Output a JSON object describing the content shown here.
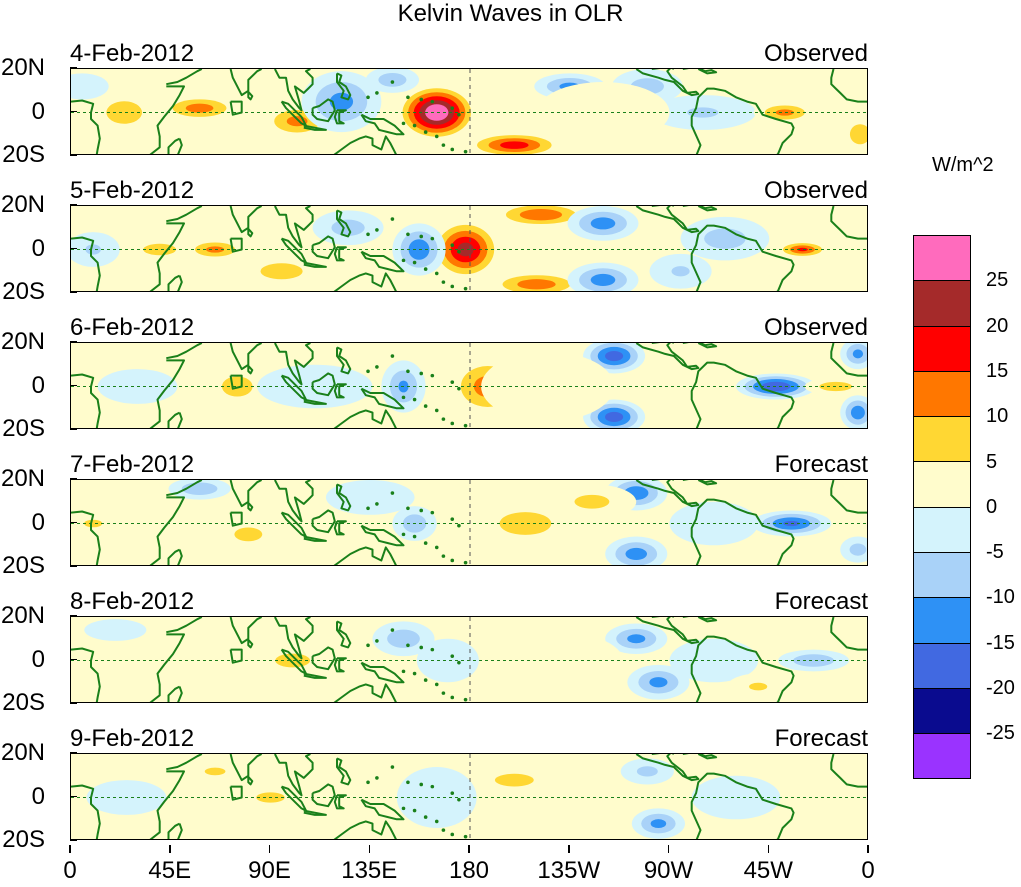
{
  "title": "Kelvin Waves in OLR",
  "panels": [
    {
      "date": "4-Feb-2012",
      "status": "Observed",
      "blobs": [
        {
          "lon": 165,
          "lat": 0,
          "w": 18,
          "h": 13,
          "val": 30
        },
        {
          "lon": 200,
          "lat": -15,
          "w": 22,
          "h": 6,
          "val": 18
        },
        {
          "lon": 24,
          "lat": 0,
          "w": 14,
          "h": 9,
          "val": 10
        },
        {
          "lon": 58,
          "lat": 2,
          "w": 18,
          "h": 6,
          "val": 13
        },
        {
          "lon": 102,
          "lat": -4,
          "w": 16,
          "h": 8,
          "val": 12
        },
        {
          "lon": 122,
          "lat": 5,
          "w": 18,
          "h": 14,
          "val": -12
        },
        {
          "lon": 145,
          "lat": 15,
          "w": 12,
          "h": 6,
          "val": -9
        },
        {
          "lon": 225,
          "lat": 12,
          "w": 16,
          "h": 6,
          "val": -12
        },
        {
          "lon": 260,
          "lat": 12,
          "w": 16,
          "h": 8,
          "val": -8
        },
        {
          "lon": 285,
          "lat": 0,
          "w": 24,
          "h": 8,
          "val": -6
        },
        {
          "lon": 322,
          "lat": 0,
          "w": 14,
          "h": 5,
          "val": 12
        },
        {
          "lon": 356,
          "lat": -10,
          "w": 8,
          "h": 8,
          "val": 10
        },
        {
          "lon": 240,
          "lat": 0,
          "w": 30,
          "h": 14,
          "val": 3
        },
        {
          "lon": 5,
          "lat": 12,
          "w": 12,
          "h": 6,
          "val": -5
        },
        {
          "lon": 75,
          "lat": -15,
          "w": 16,
          "h": 6,
          "val": 4
        }
      ]
    },
    {
      "date": "5-Feb-2012",
      "status": "Observed",
      "blobs": [
        {
          "lon": 178,
          "lat": 0,
          "w": 16,
          "h": 14,
          "val": 22
        },
        {
          "lon": 212,
          "lat": 16,
          "w": 22,
          "h": 6,
          "val": 15
        },
        {
          "lon": 210,
          "lat": -16,
          "w": 22,
          "h": 6,
          "val": 14
        },
        {
          "lon": 157,
          "lat": 0,
          "w": 12,
          "h": 12,
          "val": -14
        },
        {
          "lon": 240,
          "lat": 12,
          "w": 16,
          "h": 8,
          "val": -13
        },
        {
          "lon": 240,
          "lat": -14,
          "w": 16,
          "h": 8,
          "val": -13
        },
        {
          "lon": 125,
          "lat": 10,
          "w": 16,
          "h": 8,
          "val": -8
        },
        {
          "lon": 95,
          "lat": -10,
          "w": 18,
          "h": 7,
          "val": 9
        },
        {
          "lon": 65,
          "lat": 0,
          "w": 14,
          "h": 5,
          "val": 12
        },
        {
          "lon": 40,
          "lat": 0,
          "w": 14,
          "h": 5,
          "val": 9
        },
        {
          "lon": 330,
          "lat": 0,
          "w": 12,
          "h": 4,
          "val": 16
        },
        {
          "lon": 295,
          "lat": 5,
          "w": 20,
          "h": 10,
          "val": -8
        },
        {
          "lon": 275,
          "lat": -10,
          "w": 14,
          "h": 8,
          "val": -6
        },
        {
          "lon": 10,
          "lat": 0,
          "w": 12,
          "h": 8,
          "val": -6
        }
      ]
    },
    {
      "date": "6-Feb-2012",
      "status": "Observed",
      "blobs": [
        {
          "lon": 188,
          "lat": 0,
          "w": 18,
          "h": 14,
          "val": 13
        },
        {
          "lon": 150,
          "lat": 0,
          "w": 10,
          "h": 12,
          "val": -11
        },
        {
          "lon": 245,
          "lat": 14,
          "w": 14,
          "h": 8,
          "val": -18
        },
        {
          "lon": 245,
          "lat": -14,
          "w": 14,
          "h": 8,
          "val": -18
        },
        {
          "lon": 318,
          "lat": 0,
          "w": 18,
          "h": 6,
          "val": -20
        },
        {
          "lon": 355,
          "lat": -12,
          "w": 8,
          "h": 8,
          "val": -14
        },
        {
          "lon": 355,
          "lat": 15,
          "w": 8,
          "h": 7,
          "val": -12
        },
        {
          "lon": 75,
          "lat": 0,
          "w": 12,
          "h": 8,
          "val": 10
        },
        {
          "lon": 110,
          "lat": 0,
          "w": 26,
          "h": 10,
          "val": -5
        },
        {
          "lon": 30,
          "lat": 0,
          "w": 18,
          "h": 8,
          "val": -5
        },
        {
          "lon": 215,
          "lat": 0,
          "w": 30,
          "h": 16,
          "val": 3
        },
        {
          "lon": 345,
          "lat": 0,
          "w": 14,
          "h": 4,
          "val": 9
        }
      ]
    },
    {
      "date": "7-Feb-2012",
      "status": "Forecast",
      "blobs": [
        {
          "lon": 155,
          "lat": 0,
          "w": 10,
          "h": 8,
          "val": -9
        },
        {
          "lon": 255,
          "lat": 14,
          "w": 14,
          "h": 8,
          "val": -14
        },
        {
          "lon": 255,
          "lat": -14,
          "w": 14,
          "h": 8,
          "val": -13
        },
        {
          "lon": 325,
          "lat": 0,
          "w": 18,
          "h": 6,
          "val": -16
        },
        {
          "lon": 355,
          "lat": -12,
          "w": 8,
          "h": 6,
          "val": -8
        },
        {
          "lon": 205,
          "lat": 0,
          "w": 40,
          "h": 18,
          "val": 6
        },
        {
          "lon": 235,
          "lat": 10,
          "w": 20,
          "h": 8,
          "val": 7
        },
        {
          "lon": 80,
          "lat": -5,
          "w": 16,
          "h": 8,
          "val": 7
        },
        {
          "lon": 58,
          "lat": 16,
          "w": 14,
          "h": 5,
          "val": -10
        },
        {
          "lon": 135,
          "lat": 12,
          "w": 20,
          "h": 8,
          "val": -5
        },
        {
          "lon": 10,
          "lat": 0,
          "w": 14,
          "h": 6,
          "val": 6
        },
        {
          "lon": 290,
          "lat": 0,
          "w": 20,
          "h": 10,
          "val": -5
        }
      ]
    },
    {
      "date": "8-Feb-2012",
      "status": "Forecast",
      "blobs": [
        {
          "lon": 255,
          "lat": 10,
          "w": 14,
          "h": 7,
          "val": -12
        },
        {
          "lon": 265,
          "lat": -10,
          "w": 14,
          "h": 8,
          "val": -12
        },
        {
          "lon": 335,
          "lat": 0,
          "w": 16,
          "h": 5,
          "val": -10
        },
        {
          "lon": 215,
          "lat": 0,
          "w": 34,
          "h": 14,
          "val": 5
        },
        {
          "lon": 100,
          "lat": 0,
          "w": 20,
          "h": 8,
          "val": 7
        },
        {
          "lon": 65,
          "lat": 0,
          "w": 22,
          "h": 8,
          "val": 5
        },
        {
          "lon": 170,
          "lat": 0,
          "w": 14,
          "h": 10,
          "val": -5
        },
        {
          "lon": 150,
          "lat": 10,
          "w": 14,
          "h": 8,
          "val": -9
        },
        {
          "lon": 20,
          "lat": 14,
          "w": 14,
          "h": 5,
          "val": -5
        },
        {
          "lon": 290,
          "lat": 0,
          "w": 20,
          "h": 10,
          "val": -5
        },
        {
          "lon": 310,
          "lat": -12,
          "w": 14,
          "h": 6,
          "val": 6
        }
      ]
    },
    {
      "date": "9-Feb-2012",
      "status": "Forecast",
      "blobs": [
        {
          "lon": 265,
          "lat": -12,
          "w": 12,
          "h": 7,
          "val": -12
        },
        {
          "lon": 260,
          "lat": 12,
          "w": 12,
          "h": 6,
          "val": -7
        },
        {
          "lon": 200,
          "lat": 8,
          "w": 30,
          "h": 10,
          "val": 6
        },
        {
          "lon": 230,
          "lat": -8,
          "w": 24,
          "h": 10,
          "val": 5
        },
        {
          "lon": 165,
          "lat": 0,
          "w": 18,
          "h": 14,
          "val": -5
        },
        {
          "lon": 90,
          "lat": 0,
          "w": 22,
          "h": 8,
          "val": 6
        },
        {
          "lon": 65,
          "lat": 12,
          "w": 16,
          "h": 6,
          "val": 6
        },
        {
          "lon": 345,
          "lat": 12,
          "w": 14,
          "h": 6,
          "val": 5
        },
        {
          "lon": 25,
          "lat": 0,
          "w": 18,
          "h": 8,
          "val": -5
        },
        {
          "lon": 300,
          "lat": 0,
          "w": 20,
          "h": 10,
          "val": -5
        }
      ]
    }
  ],
  "y_axis": {
    "labels": [
      "20N",
      "0",
      "20S"
    ],
    "lats": [
      20,
      0,
      -20
    ]
  },
  "x_axis": {
    "labels": [
      "0",
      "45E",
      "90E",
      "135E",
      "180",
      "135W",
      "90W",
      "45W",
      "0"
    ],
    "lons": [
      0,
      45,
      90,
      135,
      180,
      225,
      270,
      315,
      360
    ]
  },
  "colorbar": {
    "units": "W/m^2",
    "colors": [
      "#ff6bbd",
      "#a52a2a",
      "#ff0000",
      "#ff7700",
      "#ffd733",
      "#fffccc",
      "#d4f3fc",
      "#a9d2f8",
      "#2e91f5",
      "#4169e1",
      "#0a0b8f",
      "#9a33ff"
    ],
    "labels": [
      "25",
      "20",
      "15",
      "10",
      "5",
      "0",
      "-5",
      "-10",
      "-15",
      "-20",
      "-25"
    ],
    "levels": [
      25,
      20,
      15,
      10,
      5,
      0,
      -5,
      -10,
      -15,
      -20,
      -25
    ]
  },
  "land_color": "#1a801a"
}
